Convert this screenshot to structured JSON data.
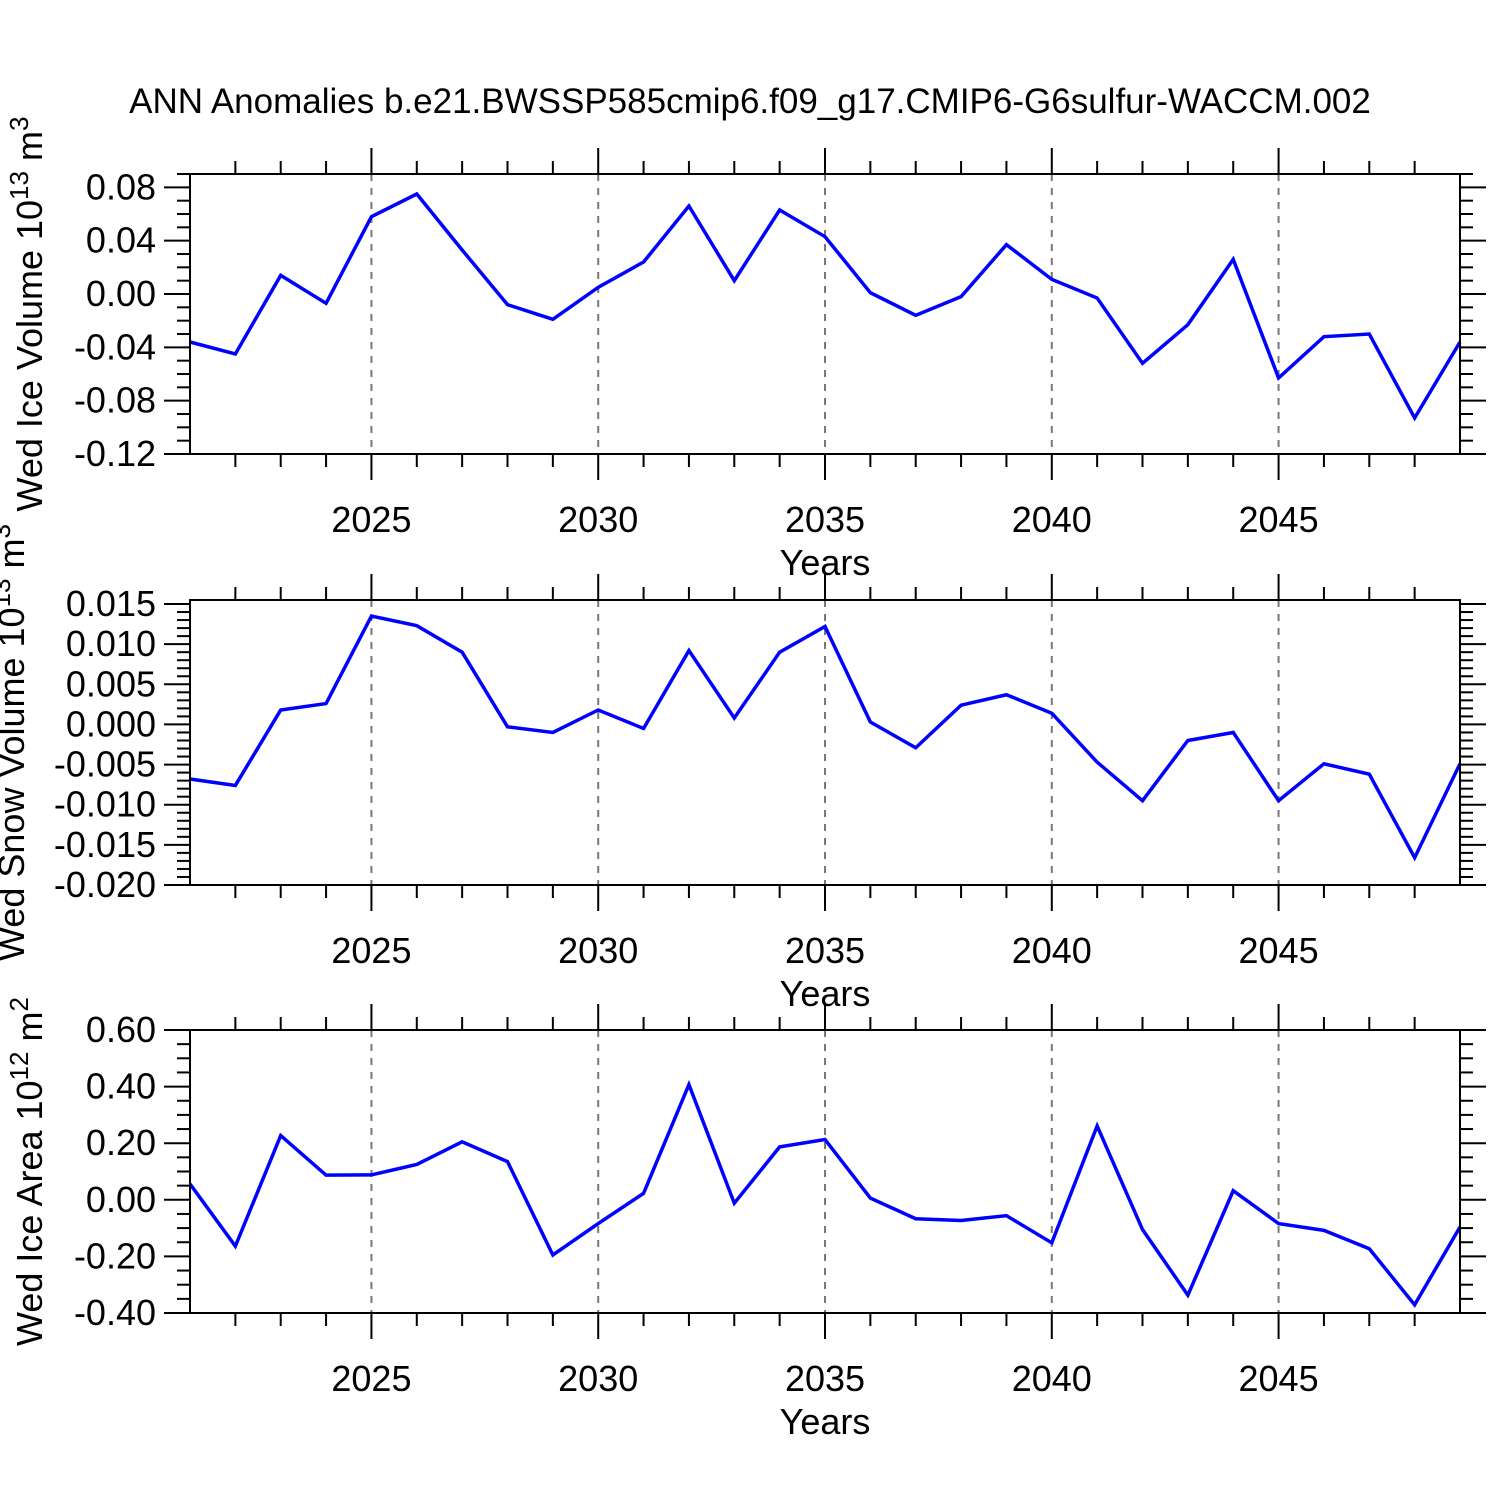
{
  "title": "ANN Anomalies b.e21.BWSSP585cmip6.f09_g17.CMIP6-G6sulfur-WACCM.002",
  "colors": {
    "line": "#0000ff",
    "grid": "#787878",
    "axis": "#000000",
    "text": "#000000"
  },
  "chart_data": [
    {
      "type": "line",
      "panel": "wed-ice-volume",
      "ylabel": {
        "main": "Wed Ice Volume 10",
        "sup1": "13",
        "mid": " m",
        "sup2": "3"
      },
      "xlabel": "Years",
      "x": [
        2021,
        2022,
        2023,
        2024,
        2025,
        2026,
        2027,
        2028,
        2029,
        2030,
        2031,
        2032,
        2033,
        2034,
        2035,
        2036,
        2037,
        2038,
        2039,
        2040,
        2041,
        2042,
        2043,
        2044,
        2045,
        2046,
        2047,
        2048,
        2049
      ],
      "values": [
        -0.036,
        -0.045,
        0.014,
        -0.007,
        0.058,
        0.075,
        0.033,
        -0.008,
        -0.019,
        0.005,
        0.024,
        0.066,
        0.01,
        0.063,
        0.043,
        0.001,
        -0.016,
        -0.002,
        0.037,
        0.011,
        -0.003,
        -0.052,
        -0.023,
        0.026,
        -0.063,
        -0.032,
        -0.03,
        -0.093,
        -0.036
      ],
      "xlim": [
        2021,
        2049
      ],
      "ylim": [
        -0.12,
        0.09
      ],
      "yticks": [
        0.08,
        0.04,
        0.0,
        -0.04,
        -0.08,
        -0.12
      ],
      "ytick_labels": [
        "0.08",
        "0.04",
        "0.00",
        "-0.04",
        "-0.08",
        "-0.12"
      ],
      "y_minor_step": 0.01,
      "xticks": [
        2025,
        2030,
        2035,
        2040,
        2045
      ],
      "xtick_labels": [
        "2025",
        "2030",
        "2035",
        "2040",
        "2045"
      ],
      "x_minor_step": 1,
      "grid": "vertical-dashed-at-major-xticks",
      "legend": "none"
    },
    {
      "type": "line",
      "panel": "wed-snow-volume",
      "ylabel": {
        "main": "Wed Snow Volume 10",
        "sup1": "13",
        "mid": " m",
        "sup2": "3"
      },
      "xlabel": "Years",
      "x": [
        2021,
        2022,
        2023,
        2024,
        2025,
        2026,
        2027,
        2028,
        2029,
        2030,
        2031,
        2032,
        2033,
        2034,
        2035,
        2036,
        2037,
        2038,
        2039,
        2040,
        2041,
        2042,
        2043,
        2044,
        2045,
        2046,
        2047,
        2048,
        2049
      ],
      "values": [
        -0.0068,
        -0.0076,
        0.0018,
        0.0026,
        0.0135,
        0.0123,
        0.009,
        -0.0003,
        -0.001,
        0.0018,
        -0.0005,
        0.0092,
        0.0008,
        0.009,
        0.0122,
        0.0003,
        -0.0029,
        0.0024,
        0.0037,
        0.0014,
        -0.0047,
        -0.0095,
        -0.002,
        -0.001,
        -0.0095,
        -0.0049,
        -0.0062,
        -0.0166,
        -0.0049
      ],
      "xlim": [
        2021,
        2049
      ],
      "ylim": [
        -0.02,
        0.0155
      ],
      "yticks": [
        0.015,
        0.01,
        0.005,
        0.0,
        -0.005,
        -0.01,
        -0.015,
        -0.02
      ],
      "ytick_labels": [
        "0.015",
        "0.010",
        "0.005",
        "0.000",
        "-0.005",
        "-0.010",
        "-0.015",
        "-0.020"
      ],
      "y_minor_step": 0.001,
      "xticks": [
        2025,
        2030,
        2035,
        2040,
        2045
      ],
      "xtick_labels": [
        "2025",
        "2030",
        "2035",
        "2040",
        "2045"
      ],
      "x_minor_step": 1,
      "grid": "vertical-dashed-at-major-xticks",
      "legend": "none"
    },
    {
      "type": "line",
      "panel": "wed-ice-area",
      "ylabel": {
        "main": "Wed Ice Area 10",
        "sup1": "12",
        "mid": " m",
        "sup2": "2"
      },
      "xlabel": "Years",
      "x": [
        2021,
        2022,
        2023,
        2024,
        2025,
        2026,
        2027,
        2028,
        2029,
        2030,
        2031,
        2032,
        2033,
        2034,
        2035,
        2036,
        2037,
        2038,
        2039,
        2040,
        2041,
        2042,
        2043,
        2044,
        2045,
        2046,
        2047,
        2048,
        2049
      ],
      "values": [
        0.056,
        -0.164,
        0.227,
        0.087,
        0.088,
        0.125,
        0.205,
        0.135,
        -0.195,
        -0.084,
        0.023,
        0.407,
        -0.012,
        0.187,
        0.213,
        0.006,
        -0.067,
        -0.073,
        -0.056,
        -0.152,
        0.261,
        -0.105,
        -0.337,
        0.032,
        -0.084,
        -0.108,
        -0.173,
        -0.371,
        -0.096
      ],
      "xlim": [
        2021,
        2049
      ],
      "ylim": [
        -0.4,
        0.6
      ],
      "yticks": [
        0.6,
        0.4,
        0.2,
        0.0,
        -0.2,
        -0.4
      ],
      "ytick_labels": [
        "0.60",
        "0.40",
        "0.20",
        "0.00",
        "-0.20",
        "-0.40"
      ],
      "y_minor_step": 0.05,
      "xticks": [
        2025,
        2030,
        2035,
        2040,
        2045
      ],
      "xtick_labels": [
        "2025",
        "2030",
        "2035",
        "2040",
        "2045"
      ],
      "x_minor_step": 1,
      "grid": "vertical-dashed-at-major-xticks",
      "legend": "none"
    }
  ]
}
